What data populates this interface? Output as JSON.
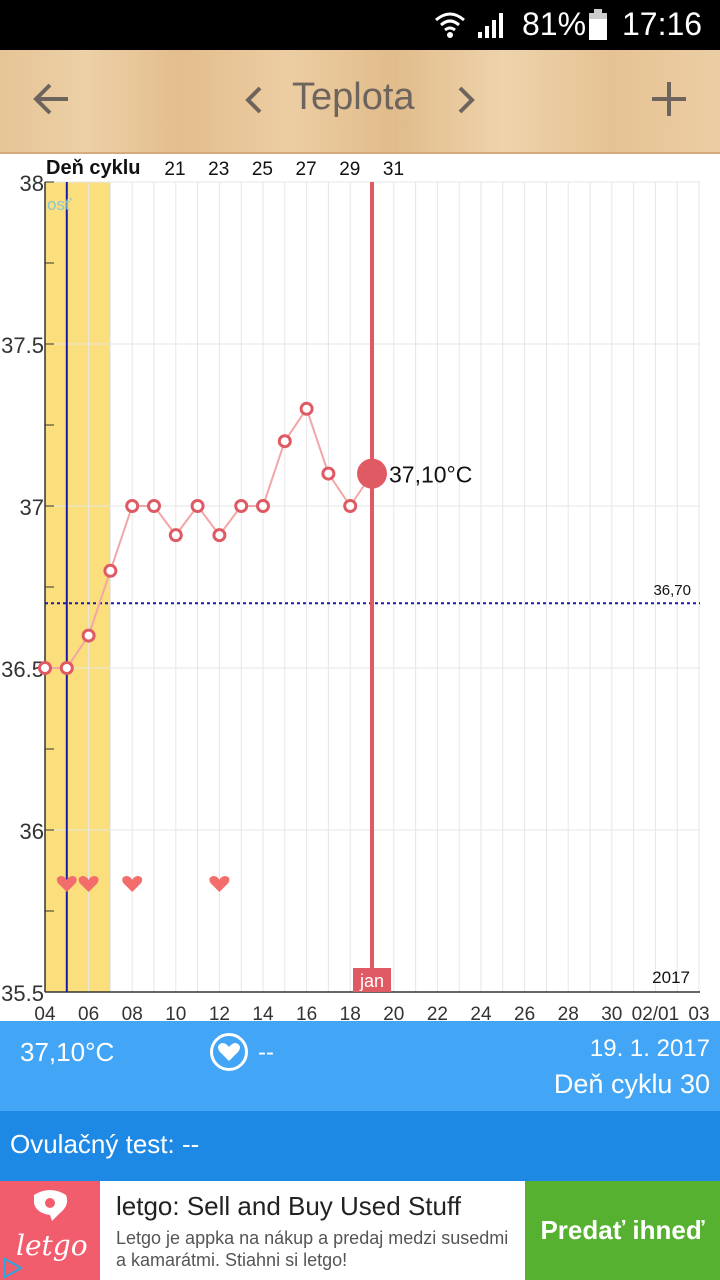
{
  "status_bar": {
    "battery": "81%",
    "time": "17:16"
  },
  "app_bar": {
    "title": "Teplota"
  },
  "chart_data": {
    "type": "line",
    "top_label": "Deň cyklu",
    "cycle_day_ticks": [
      "21",
      "23",
      "25",
      "27",
      "29",
      "31"
    ],
    "y_ticks": [
      "38",
      "37.5",
      "37",
      "36.5",
      "36",
      "35.5"
    ],
    "ylim": [
      35.5,
      38
    ],
    "x_ticks": [
      "04",
      "06",
      "08",
      "10",
      "12",
      "14",
      "16",
      "18",
      "20",
      "22",
      "24",
      "26",
      "28",
      "30",
      "02/01",
      "03"
    ],
    "x_day_range": [
      4,
      34
    ],
    "x_days": [
      4,
      5,
      6,
      7,
      8,
      9,
      10,
      11,
      12,
      13,
      14,
      15,
      16,
      17,
      18
    ],
    "temperatures": [
      36.5,
      36.5,
      36.6,
      36.8,
      37.0,
      37.0,
      36.91,
      37.0,
      36.91,
      37.0,
      37.0,
      37.2,
      37.3,
      37.1,
      37.0
    ],
    "selected": {
      "day": 19,
      "value": 37.1,
      "label": "37,10°C"
    },
    "month_label": "jan",
    "year_label": "2017",
    "coverline": {
      "value": 36.7,
      "label": "36,70"
    },
    "fertile_window": {
      "from_day": 4,
      "to_day": 7
    },
    "ovulation_day": 5,
    "partial_label": "osť",
    "intercourse_days": [
      5,
      6,
      8,
      12
    ],
    "colors": {
      "line": "#f2a6a6",
      "point": "#e05a64",
      "selected": "#e05a64",
      "fertile": "#fbdf7c",
      "ovulation": "#1a1aa8",
      "coverline": "#1a1ab0"
    }
  },
  "summary": {
    "temperature": "37,10°C",
    "sex": "--",
    "date": "19. 1. 2017",
    "cycle_day": "Deň cyklu 30"
  },
  "ovulation_test": {
    "label": "Ovulačný test: --"
  },
  "ad": {
    "logo": "letgo",
    "headline": "letgo: Sell and Buy Used Stuff",
    "body": "Letgo je appka na nákup a predaj medzi susedmi a kamarátmi. Stiahni si letgo!",
    "cta": "Predať ihneď"
  }
}
